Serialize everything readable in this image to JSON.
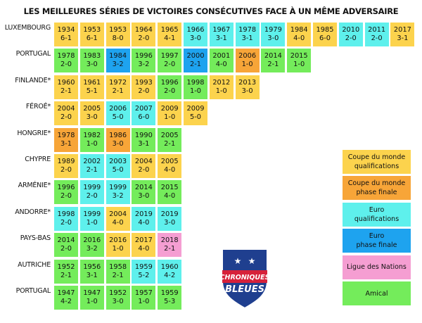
{
  "colors": {
    "wc_qual": "#fcd34d",
    "wc_final": "#f7a538",
    "euro_qual": "#5ef0ec",
    "euro_final": "#1ea3ef",
    "nations": "#f59ed2",
    "friendly": "#74ec5b"
  },
  "legend": [
    {
      "label": "Coupe du monde\nqualifications",
      "color": "wc_qual"
    },
    {
      "label": "Coupe du monde\nphase finale",
      "color": "wc_final"
    },
    {
      "label": "Euro\nqualifications",
      "color": "euro_qual"
    },
    {
      "label": "Euro\nphase finale",
      "color": "euro_final"
    },
    {
      "label": "Ligue des Nations",
      "color": "nations"
    },
    {
      "label": "Amical",
      "color": "friendly"
    }
  ],
  "logo": {
    "line1": "CHRONIQUES",
    "line2": "BLEUES"
  },
  "chart_data": {
    "type": "table",
    "title": "LES MEILLEURES SÉRIES DE VICTOIRES CONSÉCUTIVES FACE À UN MÊME ADVERSAIRE",
    "rows": [
      {
        "country": "LUXEMBOURG",
        "matches": [
          {
            "year": "1934",
            "score": "6-1",
            "type": "wc_qual"
          },
          {
            "year": "1953",
            "score": "6-1",
            "type": "wc_qual"
          },
          {
            "year": "1953",
            "score": "8-0",
            "type": "wc_qual"
          },
          {
            "year": "1964",
            "score": "2-0",
            "type": "wc_qual"
          },
          {
            "year": "1965",
            "score": "4-1",
            "type": "wc_qual"
          },
          {
            "year": "1966",
            "score": "3-0",
            "type": "euro_qual"
          },
          {
            "year": "1967",
            "score": "3-1",
            "type": "euro_qual"
          },
          {
            "year": "1978",
            "score": "3-1",
            "type": "euro_qual"
          },
          {
            "year": "1979",
            "score": "3-0",
            "type": "euro_qual"
          },
          {
            "year": "1984",
            "score": "4-0",
            "type": "wc_qual"
          },
          {
            "year": "1985",
            "score": "6-0",
            "type": "wc_qual"
          },
          {
            "year": "2010",
            "score": "2-0",
            "type": "euro_qual"
          },
          {
            "year": "2011",
            "score": "2-0",
            "type": "euro_qual"
          },
          {
            "year": "2017",
            "score": "3-1",
            "type": "wc_qual"
          }
        ]
      },
      {
        "country": "PORTUGAL",
        "matches": [
          {
            "year": "1978",
            "score": "2-0",
            "type": "friendly"
          },
          {
            "year": "1983",
            "score": "3-0",
            "type": "friendly"
          },
          {
            "year": "1984",
            "score": "3-2",
            "type": "euro_final"
          },
          {
            "year": "1996",
            "score": "3-2",
            "type": "friendly"
          },
          {
            "year": "1997",
            "score": "2-0",
            "type": "friendly"
          },
          {
            "year": "2000",
            "score": "2-1",
            "type": "euro_final"
          },
          {
            "year": "2001",
            "score": "4-0",
            "type": "friendly"
          },
          {
            "year": "2006",
            "score": "1-0",
            "type": "wc_final"
          },
          {
            "year": "2014",
            "score": "2-1",
            "type": "friendly"
          },
          {
            "year": "2015",
            "score": "1-0",
            "type": "friendly"
          }
        ]
      },
      {
        "country": "FINLANDE*",
        "matches": [
          {
            "year": "1960",
            "score": "2-1",
            "type": "wc_qual"
          },
          {
            "year": "1961",
            "score": "5-1",
            "type": "wc_qual"
          },
          {
            "year": "1972",
            "score": "2-1",
            "type": "wc_qual"
          },
          {
            "year": "1993",
            "score": "2-0",
            "type": "wc_qual"
          },
          {
            "year": "1996",
            "score": "2-0",
            "type": "friendly"
          },
          {
            "year": "1998",
            "score": "1-0",
            "type": "friendly"
          },
          {
            "year": "2012",
            "score": "1-0",
            "type": "wc_qual"
          },
          {
            "year": "2013",
            "score": "3-0",
            "type": "wc_qual"
          }
        ]
      },
      {
        "country": "FÉROÉ*",
        "matches": [
          {
            "year": "2004",
            "score": "2-0",
            "type": "wc_qual"
          },
          {
            "year": "2005",
            "score": "3-0",
            "type": "wc_qual"
          },
          {
            "year": "2006",
            "score": "5-0",
            "type": "euro_qual"
          },
          {
            "year": "2007",
            "score": "6-0",
            "type": "euro_qual"
          },
          {
            "year": "2009",
            "score": "1-0",
            "type": "wc_qual"
          },
          {
            "year": "2009",
            "score": "5-0",
            "type": "wc_qual"
          }
        ]
      },
      {
        "country": "HONGRIE*",
        "matches": [
          {
            "year": "1978",
            "score": "3-1",
            "type": "wc_final"
          },
          {
            "year": "1982",
            "score": "1-0",
            "type": "friendly"
          },
          {
            "year": "1986",
            "score": "3-0",
            "type": "wc_final"
          },
          {
            "year": "1990",
            "score": "3-1",
            "type": "friendly"
          },
          {
            "year": "2005",
            "score": "2-1",
            "type": "friendly"
          }
        ]
      },
      {
        "country": "CHYPRE",
        "matches": [
          {
            "year": "1989",
            "score": "2-0",
            "type": "wc_qual"
          },
          {
            "year": "2002",
            "score": "2-1",
            "type": "euro_qual"
          },
          {
            "year": "2003",
            "score": "5-0",
            "type": "euro_qual"
          },
          {
            "year": "2004",
            "score": "2-0",
            "type": "wc_qual"
          },
          {
            "year": "2005",
            "score": "4-0",
            "type": "wc_qual"
          }
        ]
      },
      {
        "country": "ARMÉNIE*",
        "matches": [
          {
            "year": "1996",
            "score": "2-0",
            "type": "friendly"
          },
          {
            "year": "1999",
            "score": "2-0",
            "type": "euro_qual"
          },
          {
            "year": "1999",
            "score": "3-2",
            "type": "euro_qual"
          },
          {
            "year": "2014",
            "score": "3-0",
            "type": "friendly"
          },
          {
            "year": "2015",
            "score": "4-0",
            "type": "friendly"
          }
        ]
      },
      {
        "country": "ANDORRE*",
        "matches": [
          {
            "year": "1998",
            "score": "2-0",
            "type": "euro_qual"
          },
          {
            "year": "1999",
            "score": "1-0",
            "type": "euro_qual"
          },
          {
            "year": "2004",
            "score": "4-0",
            "type": "wc_qual"
          },
          {
            "year": "2019",
            "score": "4-0",
            "type": "euro_qual"
          },
          {
            "year": "2019",
            "score": "3-0",
            "type": "euro_qual"
          }
        ]
      },
      {
        "country": "PAYS-BAS",
        "matches": [
          {
            "year": "2014",
            "score": "2-0",
            "type": "friendly"
          },
          {
            "year": "2016",
            "score": "3-2",
            "type": "friendly"
          },
          {
            "year": "2016",
            "score": "1-0",
            "type": "wc_qual"
          },
          {
            "year": "2017",
            "score": "4-0",
            "type": "wc_qual"
          },
          {
            "year": "2018",
            "score": "2-1",
            "type": "nations"
          }
        ]
      },
      {
        "country": "AUTRICHE",
        "matches": [
          {
            "year": "1952",
            "score": "2-1",
            "type": "friendly"
          },
          {
            "year": "1956",
            "score": "3-1",
            "type": "friendly"
          },
          {
            "year": "1958",
            "score": "2-1",
            "type": "friendly"
          },
          {
            "year": "1959",
            "score": "5-2",
            "type": "euro_qual"
          },
          {
            "year": "1960",
            "score": "4-2",
            "type": "euro_qual"
          }
        ]
      },
      {
        "country": "PORTUGAL",
        "matches": [
          {
            "year": "1947",
            "score": "4-2",
            "type": "friendly"
          },
          {
            "year": "1947",
            "score": "1-0",
            "type": "friendly"
          },
          {
            "year": "1952",
            "score": "3-0",
            "type": "friendly"
          },
          {
            "year": "1957",
            "score": "1-0",
            "type": "friendly"
          },
          {
            "year": "1959",
            "score": "5-3",
            "type": "friendly"
          }
        ]
      }
    ]
  }
}
